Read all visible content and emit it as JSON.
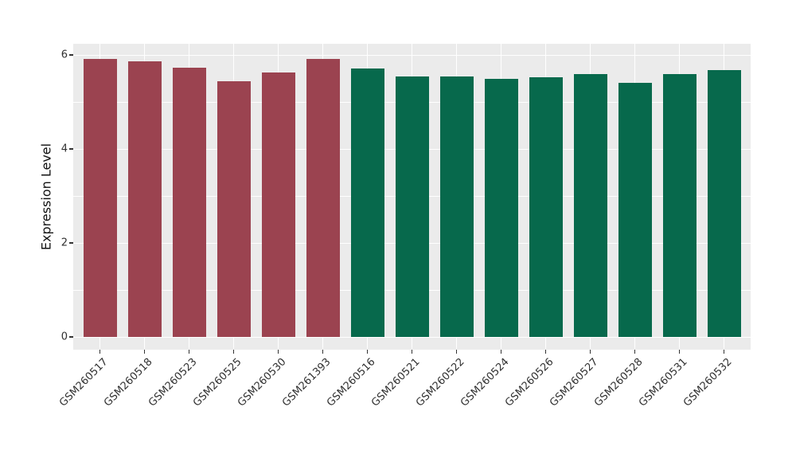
{
  "chart_data": {
    "type": "bar",
    "title": "",
    "xlabel": "",
    "ylabel": "Expression Level",
    "categories": [
      "GSM260517",
      "GSM260518",
      "GSM260523",
      "GSM260525",
      "GSM260530",
      "GSM261393",
      "GSM260516",
      "GSM260521",
      "GSM260522",
      "GSM260524",
      "GSM260526",
      "GSM260527",
      "GSM260528",
      "GSM260531",
      "GSM260532"
    ],
    "values": [
      5.92,
      5.87,
      5.73,
      5.44,
      5.63,
      5.92,
      5.72,
      5.55,
      5.55,
      5.5,
      5.53,
      5.6,
      5.41,
      5.59,
      5.67
    ],
    "bar_colors": [
      "#9B4350",
      "#9B4350",
      "#9B4350",
      "#9B4350",
      "#9B4350",
      "#9B4350",
      "#07694C",
      "#07694C",
      "#07694C",
      "#07694C",
      "#07694C",
      "#07694C",
      "#07694C",
      "#07694C",
      "#07694C"
    ],
    "group_palette": {
      "group1_red": "#9B4350",
      "group2_green": "#07694C"
    },
    "yticks": [
      0,
      2,
      4,
      6
    ],
    "yticks_minor": [
      1,
      3,
      5
    ],
    "ylim": [
      -0.3,
      6.24
    ],
    "grid": "on",
    "legend": "none",
    "panel_background": "#EBEBEB",
    "gridline_color": "#FFFFFF",
    "axis_text_color": "#303030"
  }
}
